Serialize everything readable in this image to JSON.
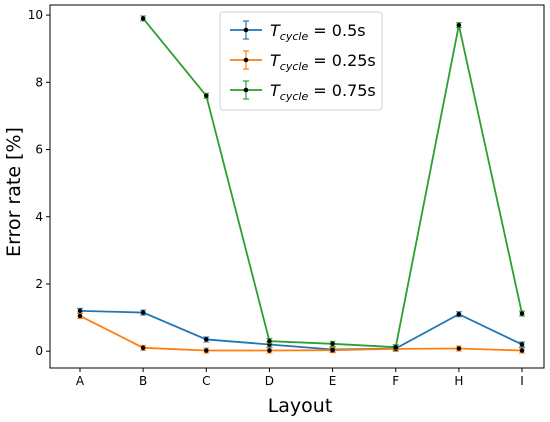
{
  "chart_data": {
    "type": "line",
    "xlabel": "Layout",
    "ylabel": "Error rate [%]",
    "categories": [
      "A",
      "B",
      "C",
      "D",
      "E",
      "F",
      "H",
      "I"
    ],
    "ylim": [
      -0.5,
      10.3
    ],
    "yticks": [
      0,
      2,
      4,
      6,
      8,
      10
    ],
    "grid": false,
    "legend_position": "top-center",
    "marker_color": "#000000",
    "series": [
      {
        "name_base": "T",
        "name_sub": "cycle",
        "name_rest": " = 0.5s",
        "color": "#1f77b4",
        "values": [
          1.2,
          1.15,
          0.35,
          0.2,
          0.05,
          0.08,
          1.1,
          0.2
        ]
      },
      {
        "name_base": "T",
        "name_sub": "cycle",
        "name_rest": " = 0.25s",
        "color": "#ff7f0e",
        "values": [
          1.05,
          0.1,
          0.02,
          0.02,
          0.03,
          0.07,
          0.08,
          0.02
        ]
      },
      {
        "name_base": "T",
        "name_sub": "cycle",
        "name_rest": " = 0.75s",
        "color": "#2ca02c",
        "values": [
          null,
          9.9,
          7.6,
          0.3,
          0.22,
          0.12,
          9.7,
          1.12
        ]
      }
    ]
  }
}
